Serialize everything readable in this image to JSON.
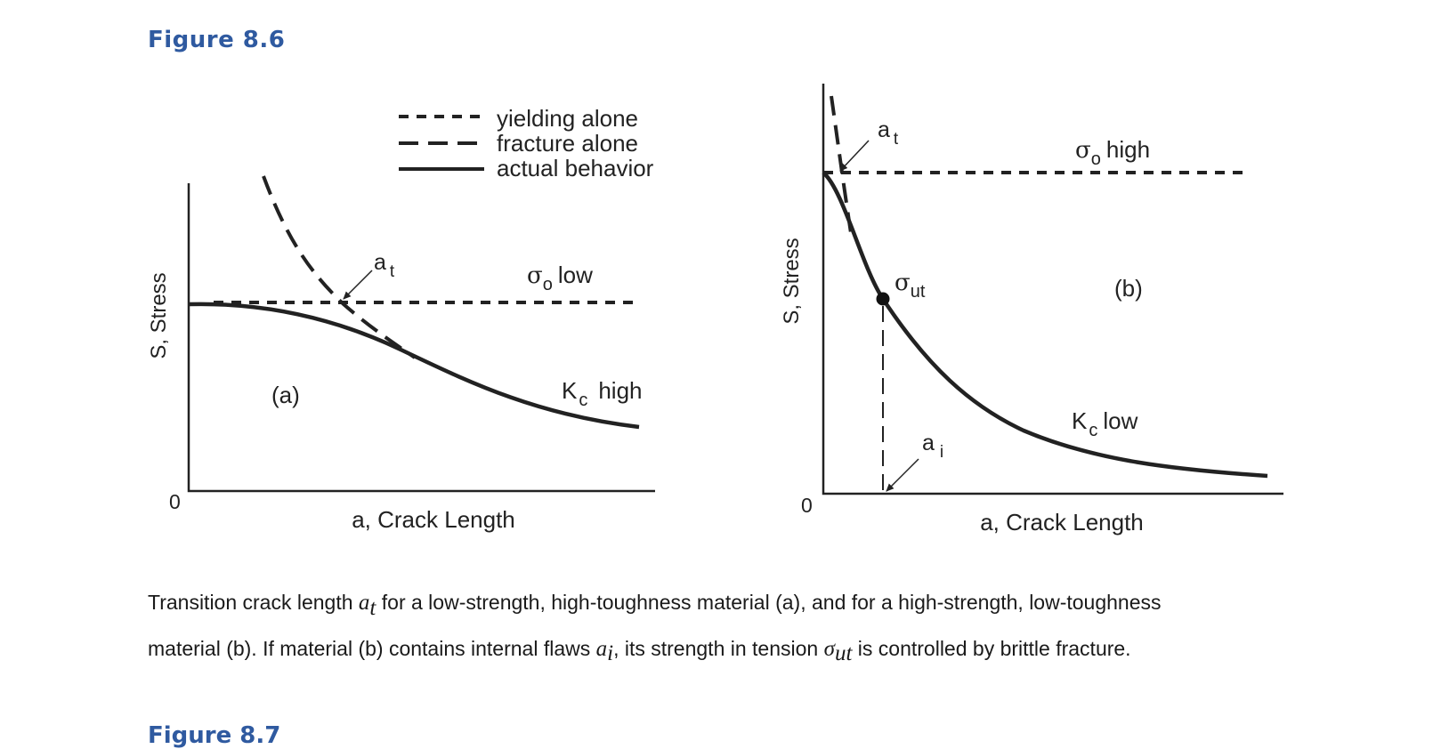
{
  "figure": {
    "title": "Figure 8.6",
    "next_title": "Figure 8.7"
  },
  "legend": {
    "yielding": "yielding alone",
    "fracture": "fracture alone",
    "actual": "actual behavior"
  },
  "panel_a": {
    "ylabel": "S, Stress",
    "xlabel": "a, Crack Length",
    "origin": "0",
    "tag": "(a)",
    "at_label": "a",
    "at_sub": "t",
    "sigma": "σ",
    "sigma_sub": "o",
    "sigma_text": "low",
    "kc": "K",
    "kc_sub": "c",
    "kc_text": "high"
  },
  "panel_b": {
    "ylabel": "S, Stress",
    "xlabel": "a, Crack Length",
    "origin": "0",
    "tag": "(b)",
    "at_label": "a",
    "at_sub": "t",
    "sigma": "σ",
    "sigma_sub": "o",
    "sigma_text": "high",
    "sut": "σ",
    "sut_sub": "ut",
    "kc": "K",
    "kc_sub": "c",
    "kc_text": "low",
    "ai_label": "a",
    "ai_sub": "i"
  },
  "caption": {
    "p1_a": "Transition crack length ",
    "p1_at": "a",
    "p1_at_sub": "t",
    "p1_b": " for a low-strength, high-toughness material (a), and for a high-strength, low-toughness",
    "p2_a": "material (b). If material (b) contains internal flaws ",
    "p2_ai": "a",
    "p2_ai_sub": "i",
    "p2_b": ", its strength in tension ",
    "p2_sut": "σ",
    "p2_sut_sub": "ut",
    "p2_c": " is controlled by brittle fracture."
  }
}
